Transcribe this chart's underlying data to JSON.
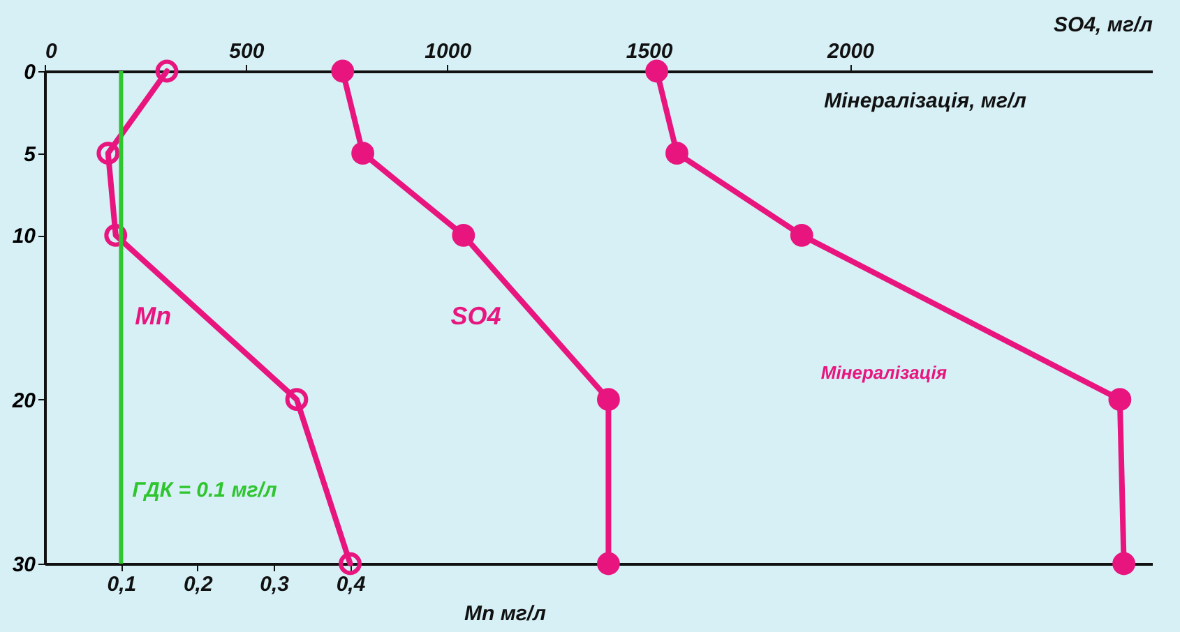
{
  "chart_data": {
    "type": "line",
    "xlabel": "Mn  мг/л",
    "x2label": "SO4,  мг/л",
    "annotations": [
      "Мінералізація, мг/л"
    ],
    "xlim": [
      0,
      1.45
    ],
    "xticks": [
      {
        "value": 0.1,
        "label": "0,1"
      },
      {
        "value": 0.2,
        "label": "0,2"
      },
      {
        "value": 0.3,
        "label": "0,3"
      },
      {
        "value": 0.4,
        "label": "0,4"
      }
    ],
    "x2lim": [
      0,
      2750
    ],
    "x2ticks": [
      0,
      500,
      1000,
      1500,
      2000
    ],
    "ylim": [
      30,
      0
    ],
    "yticks": [
      0,
      5,
      10,
      20,
      30
    ],
    "marker": "circle",
    "line_style": "solid",
    "series": [
      {
        "name": "Mn",
        "color": "#e8157f",
        "x": [
          0.16,
          0.083,
          0.093,
          0.33,
          0.4
        ],
        "values": [
          0,
          5,
          10,
          20,
          30
        ]
      },
      {
        "name": "SO4",
        "color": "#e8157f",
        "axis": "x2",
        "x": [
          740,
          790,
          1040,
          1400,
          1400
        ],
        "values": [
          0,
          5,
          10,
          20,
          30
        ]
      },
      {
        "name": "Мінералізація",
        "color": "#e8157f",
        "axis": "x2",
        "x": [
          1520,
          1570,
          1880,
          2670,
          2680
        ],
        "values": [
          0,
          5,
          10,
          20,
          30
        ]
      }
    ],
    "ref_lines": [
      {
        "axis": "x",
        "value": 0.1,
        "label": "ГДК = 0.1 мг/л",
        "color": "#2ec52e"
      }
    ]
  }
}
